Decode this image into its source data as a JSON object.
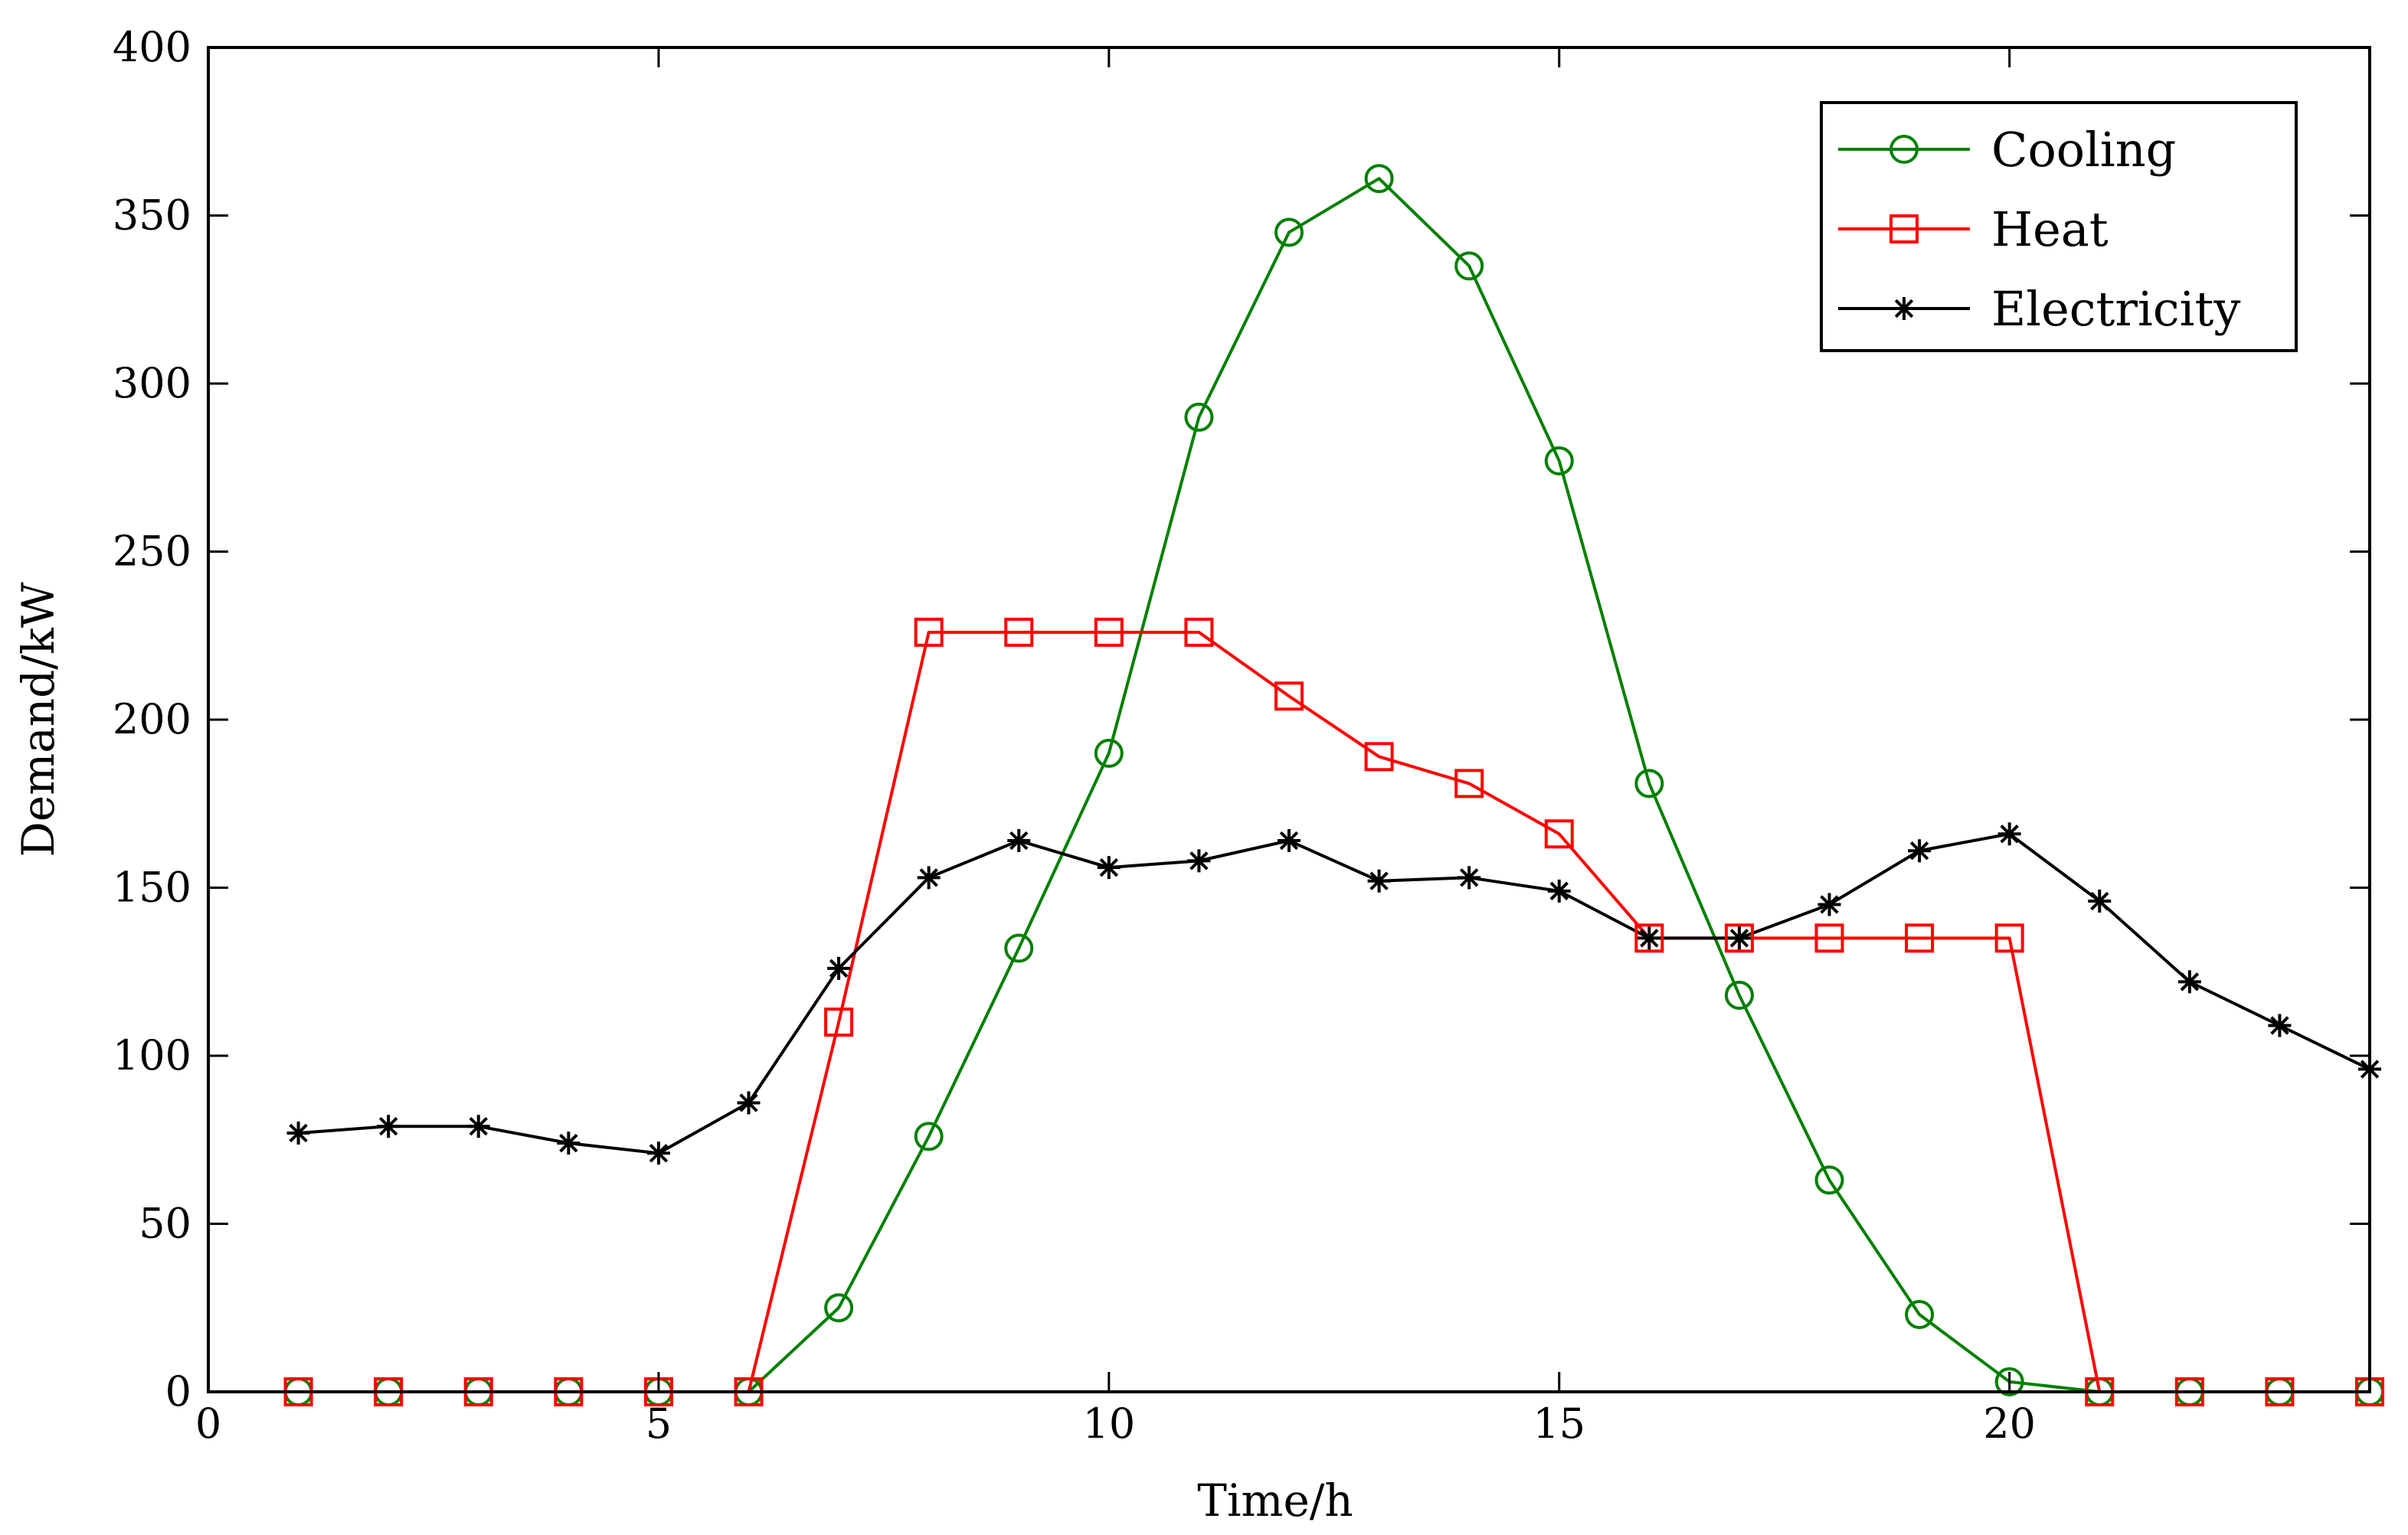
{
  "chart_data": {
    "type": "line",
    "title": "",
    "xlabel": "Time/h",
    "ylabel": "Demand/kW",
    "xlim": [
      0,
      24
    ],
    "ylim": [
      0,
      400
    ],
    "xticks": [
      0,
      5,
      10,
      15,
      20
    ],
    "yticks": [
      0,
      50,
      100,
      150,
      200,
      250,
      300,
      350,
      400
    ],
    "grid": false,
    "legend_position": "top-right",
    "x": [
      1,
      2,
      3,
      4,
      5,
      6,
      7,
      8,
      9,
      10,
      11,
      12,
      13,
      14,
      15,
      16,
      17,
      18,
      19,
      20,
      21,
      22,
      23,
      24
    ],
    "series": [
      {
        "name": "Cooling",
        "color": "#008000",
        "marker": "circle",
        "values": [
          0,
          0,
          0,
          0,
          0,
          0,
          25,
          76,
          132,
          190,
          290,
          345,
          361,
          335,
          277,
          181,
          118,
          63,
          23,
          3,
          0,
          0,
          0,
          0
        ]
      },
      {
        "name": "Heat",
        "color": "#ff0000",
        "marker": "square",
        "values": [
          0,
          0,
          0,
          0,
          0,
          0,
          110,
          226,
          226,
          226,
          226,
          207,
          189,
          181,
          166,
          135,
          135,
          135,
          135,
          135,
          0,
          0,
          0,
          0
        ]
      },
      {
        "name": "Electricity",
        "color": "#000000",
        "marker": "star",
        "values": [
          77,
          79,
          79,
          74,
          71,
          86,
          126,
          153,
          164,
          156,
          158,
          164,
          152,
          153,
          149,
          135,
          135,
          145,
          161,
          166,
          146,
          122,
          109,
          96
        ]
      }
    ]
  }
}
